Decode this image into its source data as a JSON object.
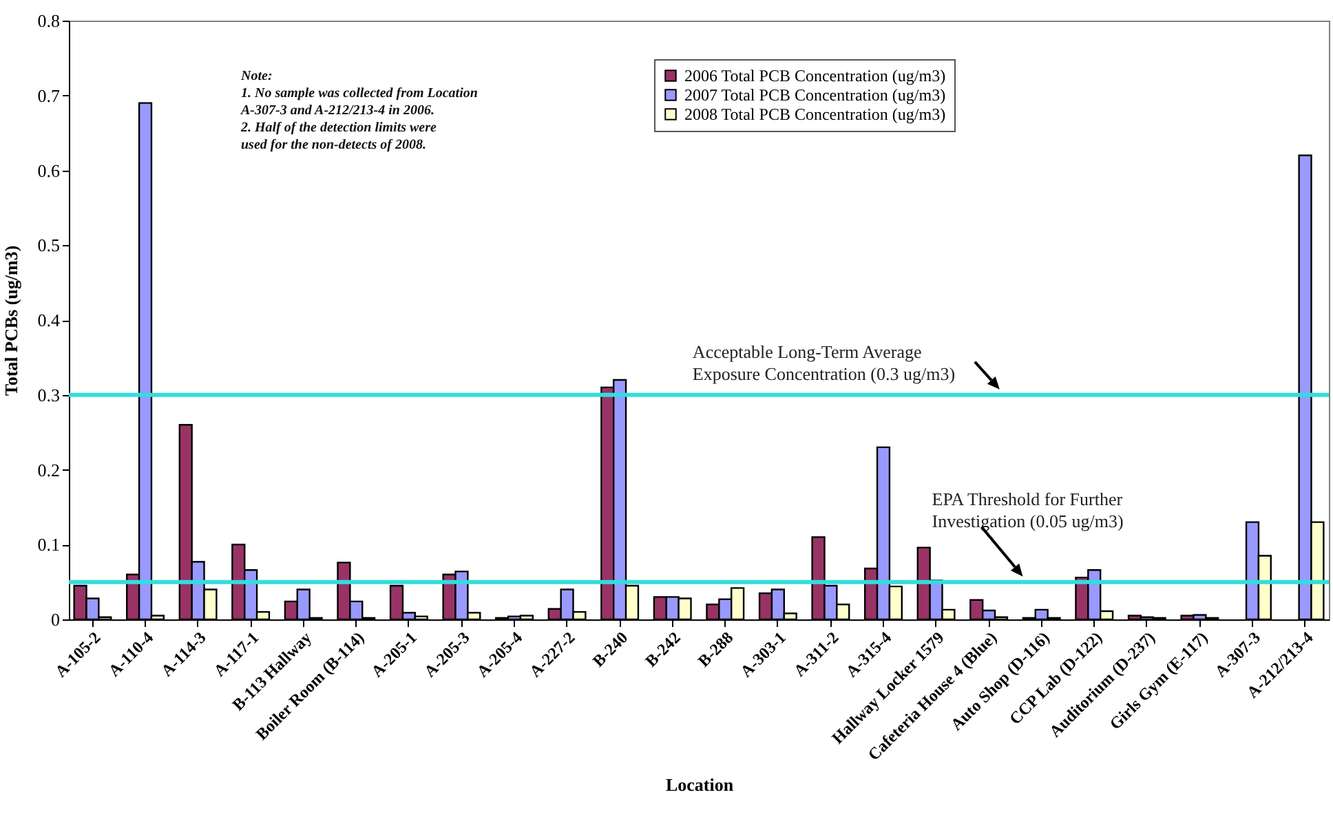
{
  "chart_data": {
    "type": "bar",
    "xlabel": "Location",
    "ylabel": "Total PCBs (ug/m3)",
    "categories": [
      "A-105-2",
      "A-110-4",
      "A-114-3",
      "A-117-1",
      "B-113 Hallway",
      "Boiler Room (B-114)",
      "A-205-1",
      "A-205-3",
      "A-205-4",
      "A-227-2",
      "B-240",
      "B-242",
      "B-288",
      "A-303-1",
      "A-311-2",
      "A-315-4",
      "Hallway Locker 1579",
      "Cafeteria House 4 (Blue)",
      "Auto Shop (D-116)",
      "CCP Lab (D-122)",
      "Auditorium (D-237)",
      "Girls Gym (E-117)",
      "A-307-3",
      "A-212/213-4"
    ],
    "series": [
      {
        "name": "2006 Total PCB Concentration (ug/m3)",
        "color": "#993366",
        "values": [
          0.045,
          0.06,
          0.26,
          0.1,
          0.024,
          0.076,
          0.045,
          0.06,
          0.002,
          0.014,
          0.31,
          0.03,
          0.02,
          0.035,
          0.11,
          0.068,
          0.096,
          0.026,
          0.002,
          0.056,
          0.005,
          0.005,
          null,
          null
        ]
      },
      {
        "name": "2007 Total PCB Concentration (ug/m3)",
        "color": "#9999ff",
        "values": [
          0.028,
          0.69,
          0.077,
          0.066,
          0.04,
          0.024,
          0.009,
          0.064,
          0.004,
          0.04,
          0.32,
          0.03,
          0.027,
          0.04,
          0.045,
          0.23,
          0.052,
          0.012,
          0.013,
          0.066,
          0.003,
          0.006,
          0.13,
          0.62
        ]
      },
      {
        "name": "2008 Total PCB Concentration (ug/m3)",
        "color": "#ffffcc",
        "values": [
          0.003,
          0.005,
          0.04,
          0.01,
          0.002,
          0.002,
          0.004,
          0.009,
          0.005,
          0.01,
          0.045,
          0.028,
          0.042,
          0.008,
          0.02,
          0.044,
          0.013,
          0.003,
          0.002,
          0.011,
          0.002,
          0.002,
          0.085,
          0.13
        ]
      }
    ],
    "ylim": [
      0,
      0.8
    ],
    "yticks": [
      0,
      0.1,
      0.2,
      0.3,
      0.4,
      0.5,
      0.6,
      0.7,
      0.8
    ],
    "legend": "top",
    "ref_lines": [
      {
        "axis": "y",
        "value": 0.3,
        "label": "Acceptable Long-Term Average Exposure Concentration (0.3 ug/m3)",
        "color": "#33dddd"
      },
      {
        "axis": "y",
        "value": 0.05,
        "label": "EPA Threshold for Further Investigation (0.05 ug/m3)",
        "color": "#33dddd"
      }
    ],
    "annotations": [
      "Note:",
      "1. No sample was collected from Location A-307-3 and A-212/213-4 in 2006.",
      "2. Half of the detection limits were used for the non-detects of 2008."
    ]
  }
}
